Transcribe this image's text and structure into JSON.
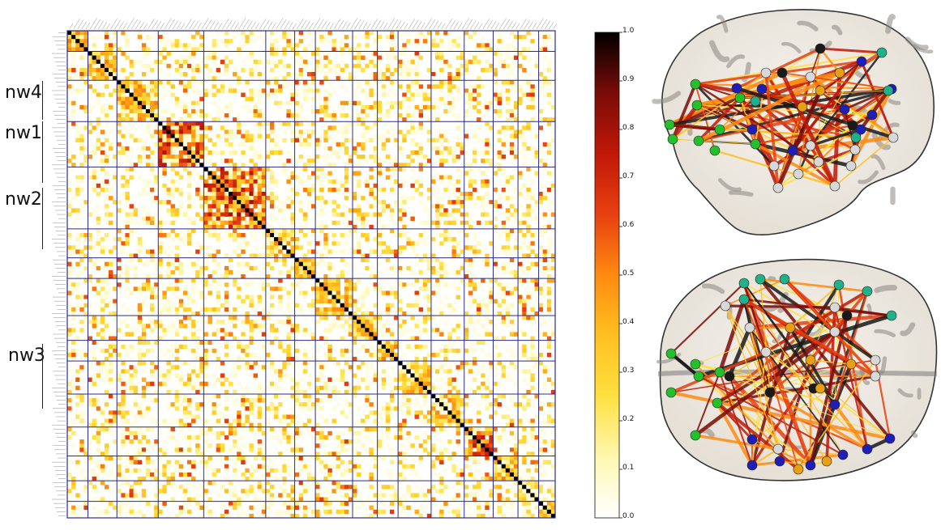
{
  "network_labels": [
    {
      "id": "nw4",
      "text": "nw4"
    },
    {
      "id": "nw1",
      "text": "nw1"
    },
    {
      "id": "nw2",
      "text": "nw2"
    },
    {
      "id": "nw3",
      "text": "nw3"
    }
  ],
  "colorbar": {
    "ticks": [
      "0.0",
      "0.1",
      "0.2",
      "0.3",
      "0.4",
      "0.5",
      "0.6",
      "0.7",
      "0.8",
      "0.9",
      "1.0"
    ],
    "colors": [
      "#ffffff",
      "#fff7b0",
      "#ffe040",
      "#ffc020",
      "#ff8a10",
      "#e84010",
      "#c01808",
      "#7a0c08",
      "#000000"
    ]
  },
  "matrix": {
    "grid_color": "#2b2b8c",
    "cell_count": 118
  },
  "brain_views": [
    {
      "id": "lateral",
      "view": "lateral"
    },
    {
      "id": "axial",
      "view": "axial"
    }
  ],
  "node_colors": {
    "green": "#22c02a",
    "blue": "#1f1fb8",
    "teal": "#20b08a",
    "grey": "#d8d8d8",
    "orange": "#e8a010",
    "black": "#1a1a1a"
  }
}
